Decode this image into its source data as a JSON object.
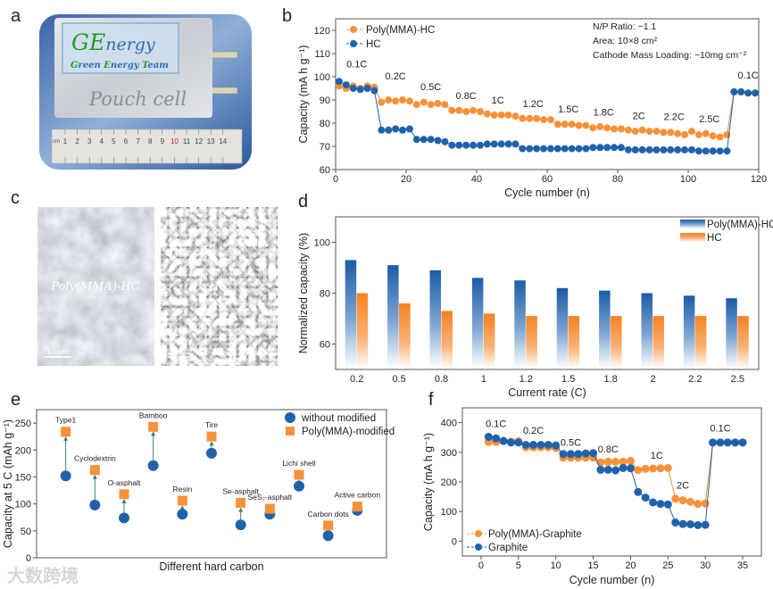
{
  "panel_labels": {
    "a": "a",
    "b": "b",
    "c": "c",
    "d": "d",
    "e": "e",
    "f": "f"
  },
  "panel_a": {
    "logo_g": "GE",
    "logo_rest": "nergy",
    "team_g": "G",
    "team_1": "reen ",
    "team_e": "E",
    "team_2": "nergy ",
    "team_t": "T",
    "team_3": "eam",
    "pouch_label": "Pouch cell",
    "ruler_unit": "cm",
    "ruler_numbers": [
      "1",
      "2",
      "3",
      "4",
      "5",
      "6",
      "7",
      "8",
      "9",
      "10",
      "11",
      "12",
      "13",
      "14"
    ]
  },
  "panel_c": {
    "left_label": "Poly(MMA)-HC",
    "right_label": "HC",
    "scale_left": "10 um",
    "scale_right": "10 um"
  },
  "colors": {
    "orange": "#f7923a",
    "blue": "#1f62ab",
    "arrow": "#3f7f78"
  },
  "chart_data": [
    {
      "id": "b",
      "type": "line",
      "xlabel": "Cycle number (n)",
      "ylabel": "Capacity (mA h g⁻¹)",
      "xlim": [
        0,
        120
      ],
      "ylim": [
        60,
        125
      ],
      "xticks": [
        0,
        20,
        40,
        60,
        80,
        100,
        120
      ],
      "yticks": [
        60,
        70,
        80,
        90,
        100,
        110,
        120
      ],
      "annotations": [
        "N/P Ratio: ~1.1",
        "Area: 10×8 cm²",
        "Cathode Mass Loading: ~10mg cm⁻²"
      ],
      "rate_labels": [
        {
          "text": "0.1C",
          "x": 6,
          "y": 104
        },
        {
          "text": "0.2C",
          "x": 17,
          "y": 98.8
        },
        {
          "text": "0.5C",
          "x": 27,
          "y": 94.2
        },
        {
          "text": "0.8C",
          "x": 37,
          "y": 90.4
        },
        {
          "text": "1C",
          "x": 46,
          "y": 88.5
        },
        {
          "text": "1.2C",
          "x": 56,
          "y": 87
        },
        {
          "text": "1.5C",
          "x": 66,
          "y": 84.7
        },
        {
          "text": "1.8C",
          "x": 76,
          "y": 83.3
        },
        {
          "text": "2C",
          "x": 86,
          "y": 81.7
        },
        {
          "text": "2.2C",
          "x": 96,
          "y": 81.3
        },
        {
          "text": "2.5C",
          "x": 106,
          "y": 80.3
        },
        {
          "text": "0.1C",
          "x": 117,
          "y": 99.3
        }
      ],
      "x": [
        1,
        3,
        5,
        7,
        9,
        11,
        13,
        15,
        17,
        19,
        21,
        23,
        25,
        27,
        29,
        31,
        33,
        35,
        37,
        39,
        41,
        43,
        45,
        47,
        49,
        51,
        53,
        55,
        57,
        59,
        61,
        63,
        65,
        67,
        69,
        71,
        73,
        75,
        77,
        79,
        81,
        83,
        85,
        87,
        89,
        91,
        93,
        95,
        97,
        99,
        101,
        103,
        105,
        107,
        109,
        111,
        113,
        115,
        117,
        119
      ],
      "series": [
        {
          "name": "Poly(MMA)-HC",
          "color": "#f7923a",
          "values": [
            96,
            95,
            96,
            95,
            96,
            95.5,
            89,
            90,
            89.5,
            90,
            89.5,
            88,
            89,
            88,
            88.5,
            88,
            85.5,
            85.5,
            85,
            85.5,
            85,
            84,
            83.5,
            83.5,
            83.5,
            83,
            82,
            82,
            82,
            81.5,
            81.5,
            79.5,
            79.5,
            79.5,
            79,
            79,
            78,
            78.5,
            78,
            77.5,
            77.5,
            77,
            76.5,
            77,
            76.5,
            76.5,
            76,
            76,
            75.5,
            75,
            76.5,
            75,
            75.5,
            74.5,
            74,
            75,
            93.5,
            93.5,
            93,
            93
          ]
        },
        {
          "name": "HC",
          "color": "#1f62ab",
          "values": [
            98,
            96.5,
            95,
            94.5,
            95,
            94,
            77,
            77,
            77.5,
            77,
            77.5,
            73,
            73,
            73,
            72.5,
            72,
            70.5,
            70.5,
            70.5,
            70.5,
            70.5,
            71,
            71,
            71,
            71,
            71,
            69,
            69,
            69,
            69,
            69,
            69,
            69,
            69,
            69,
            69,
            69.5,
            69.5,
            69.5,
            69.5,
            69.5,
            68.5,
            68.5,
            68.5,
            68.5,
            68.5,
            68.5,
            68.5,
            68.5,
            68.5,
            68.5,
            68,
            68,
            68,
            68,
            68,
            93.5,
            93.5,
            93,
            93
          ]
        }
      ],
      "legend": "top-left"
    },
    {
      "id": "d",
      "type": "bar",
      "xlabel": "Current rate (C)",
      "ylabel": "Normalized capacity (%)",
      "ylim": [
        50,
        110
      ],
      "yticks": [
        60,
        80,
        100
      ],
      "categories": [
        "0.2",
        "0.5",
        "0.8",
        "1",
        "1.2",
        "1.5",
        "1.8",
        "2",
        "2.2",
        "2.5"
      ],
      "series": [
        {
          "name": "Poly(MMA)-HC",
          "color": "#1f62ab",
          "values": [
            93,
            91,
            89,
            86,
            85,
            82,
            81,
            80,
            79,
            78
          ]
        },
        {
          "name": "HC",
          "color": "#f7923a",
          "values": [
            80,
            76,
            73,
            72,
            71,
            71,
            71,
            71,
            71,
            71
          ]
        }
      ],
      "legend": "top-right"
    },
    {
      "id": "e",
      "type": "scatter",
      "xlabel": "Different hard carbon",
      "ylabel": "Capacity at 5 C (mAh g⁻¹)",
      "ylim": [
        0,
        275
      ],
      "xlim": [
        0,
        12
      ],
      "yticks": [
        0,
        50,
        100,
        150,
        200,
        250
      ],
      "categories": [
        "Type1",
        "Cyclodextrin",
        "O-asphalt",
        "Bamboo",
        "Resin",
        "Tire",
        "Se-asphalt",
        "SeS₂-asphalt",
        "Lichi shell",
        "Carbon dots",
        "Active carbon"
      ],
      "series": [
        {
          "name": "without modified",
          "color": "#1f62ab",
          "marker": "circle",
          "values": [
            152,
            98,
            74,
            171,
            81,
            194,
            61,
            81,
            133,
            41,
            88
          ]
        },
        {
          "name": "Poly(MMA)-modified",
          "color": "#f7923a",
          "marker": "square",
          "values": [
            234,
            163,
            118,
            243,
            106,
            225,
            102,
            91,
            154,
            60,
            95
          ]
        }
      ],
      "legend": "top-right"
    },
    {
      "id": "f",
      "type": "line",
      "xlabel": "Cycle number (n)",
      "ylabel": "Capacity (mA h g⁻¹)",
      "xlim": [
        -2.5,
        37.5
      ],
      "ylim": [
        -50,
        450
      ],
      "xticks": [
        0,
        5,
        10,
        15,
        20,
        25,
        30,
        35
      ],
      "yticks": [
        0,
        100,
        200,
        300,
        400
      ],
      "rate_labels": [
        {
          "text": "0.1C",
          "x": 2,
          "y": 385
        },
        {
          "text": "0.2C",
          "x": 7,
          "y": 362
        },
        {
          "text": "0.5C",
          "x": 12,
          "y": 322
        },
        {
          "text": "0.8C",
          "x": 17,
          "y": 300
        },
        {
          "text": "1C",
          "x": 23.5,
          "y": 278
        },
        {
          "text": "2C",
          "x": 27,
          "y": 177
        },
        {
          "text": "0.1C",
          "x": 32,
          "y": 370
        }
      ],
      "x": [
        1,
        2,
        3,
        4,
        5,
        6,
        7,
        8,
        9,
        10,
        11,
        12,
        13,
        14,
        15,
        16,
        17,
        18,
        19,
        20,
        21,
        22,
        23,
        24,
        25,
        26,
        27,
        28,
        29,
        30,
        31,
        32,
        33,
        34,
        35
      ],
      "series": [
        {
          "name": "Poly(MMA)-Graphite",
          "color": "#f7923a",
          "values": [
            335,
            335,
            338,
            336,
            337,
            317,
            317,
            317,
            317,
            315,
            282,
            282,
            282,
            282,
            282,
            266,
            268,
            268,
            268,
            271,
            240,
            244,
            245,
            246,
            247,
            143,
            138,
            133,
            126,
            127,
            333,
            333,
            333,
            333,
            333
          ]
        },
        {
          "name": "Graphite",
          "color": "#1f62ab",
          "values": [
            352,
            347,
            338,
            333,
            333,
            325,
            325,
            325,
            325,
            323,
            294,
            294,
            294,
            296,
            297,
            241,
            241,
            239,
            247,
            246,
            166,
            147,
            131,
            126,
            124,
            63,
            58,
            57,
            54,
            55,
            333,
            333,
            333,
            333,
            333
          ]
        }
      ],
      "legend": "bottom-left"
    }
  ],
  "watermark": "大数跨境"
}
